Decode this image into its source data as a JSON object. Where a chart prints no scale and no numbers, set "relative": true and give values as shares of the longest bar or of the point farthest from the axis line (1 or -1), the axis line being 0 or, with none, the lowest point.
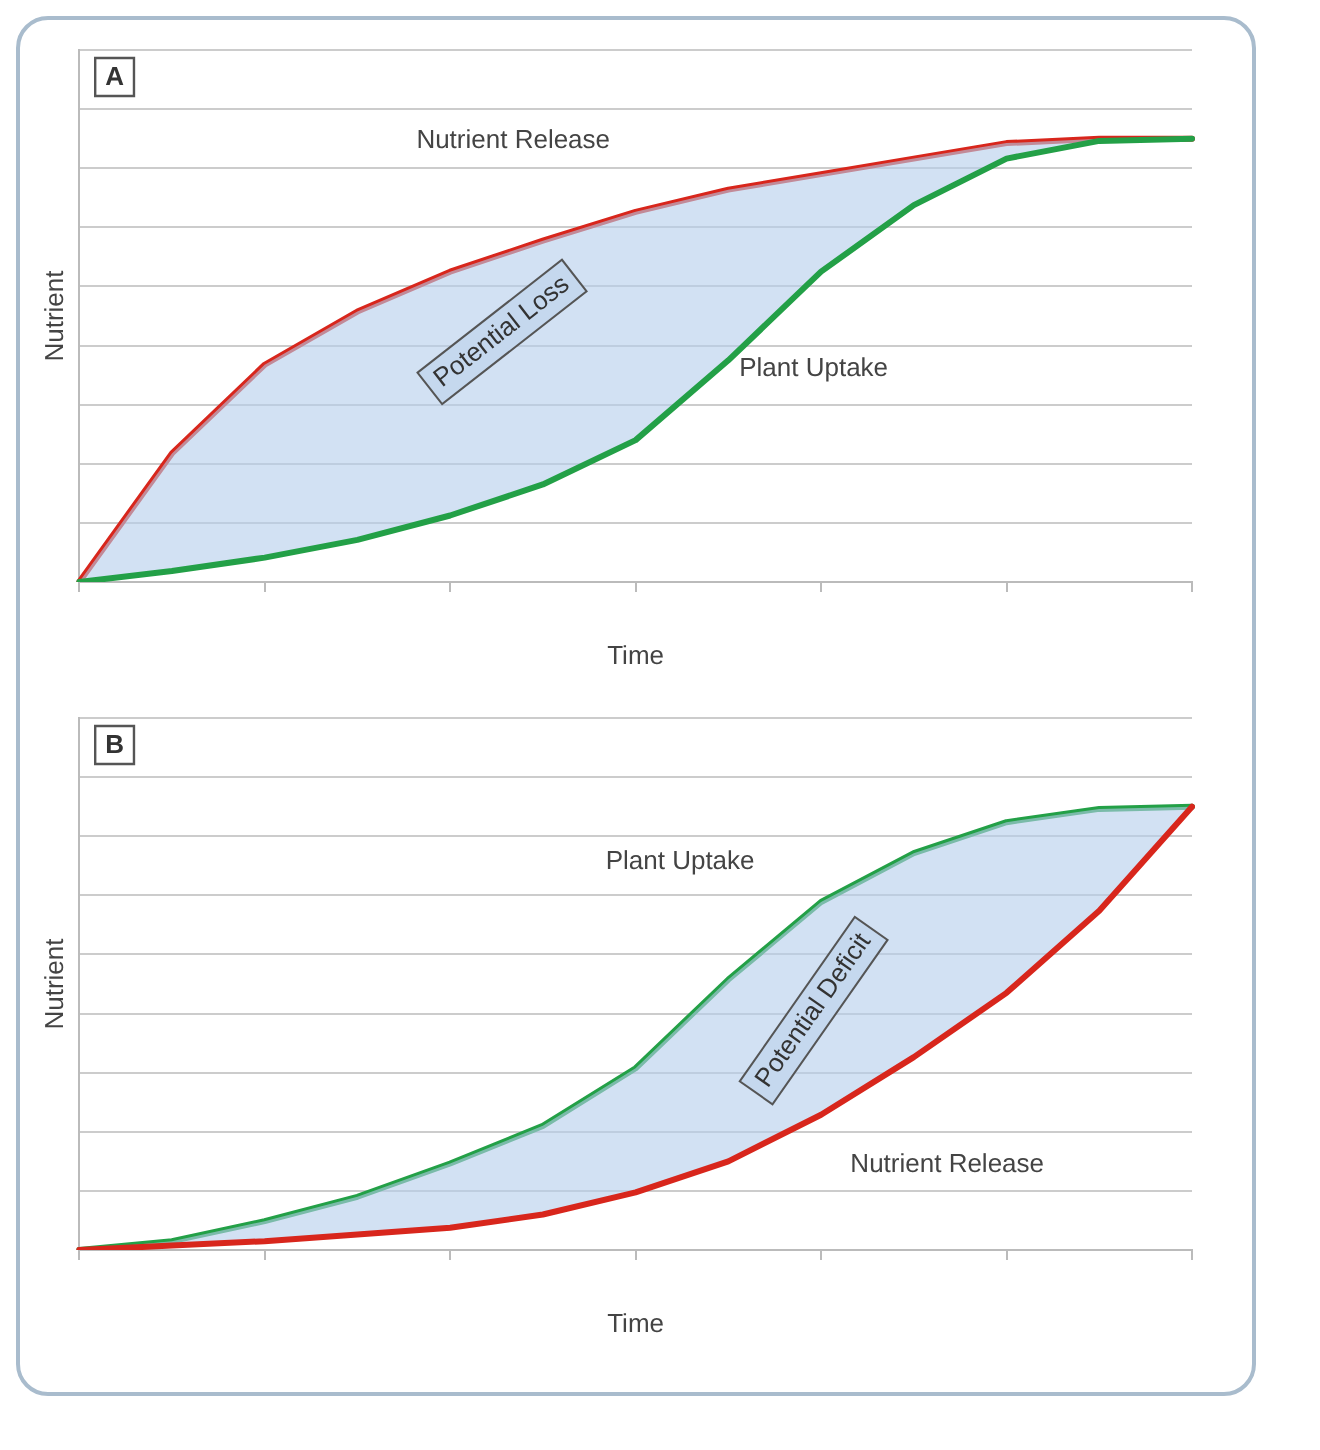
{
  "chart_data": [
    {
      "type": "line",
      "title": "A",
      "xlabel": "Time",
      "ylabel": "Nutrient",
      "relative": true,
      "grid": "y",
      "marker": "none",
      "line_style": "solid",
      "legend": false,
      "categories": [
        null,
        null,
        null,
        null,
        null,
        null,
        null,
        null,
        null,
        null,
        null,
        null,
        null
      ],
      "series": [
        {
          "name": "Nutrient Release",
          "color": "#d8261c",
          "values": [
            0,
            0.29,
            0.49,
            0.61,
            0.7,
            0.77,
            0.835,
            0.885,
            0.92,
            0.955,
            0.99,
            1,
            1
          ]
        },
        {
          "name": "Plant Uptake",
          "color": "#23a047",
          "values": [
            0,
            0.025,
            0.055,
            0.095,
            0.15,
            0.22,
            0.32,
            0.5,
            0.7,
            0.85,
            0.955,
            0.995,
            1
          ]
        }
      ],
      "annotations": [
        "Potential Loss"
      ]
    },
    {
      "type": "line",
      "title": "B",
      "xlabel": "Time",
      "ylabel": "Nutrient",
      "relative": true,
      "grid": "y",
      "marker": "none",
      "line_style": "solid",
      "legend": false,
      "categories": [
        null,
        null,
        null,
        null,
        null,
        null,
        null,
        null,
        null,
        null,
        null,
        null,
        null
      ],
      "series": [
        {
          "name": "Plant Uptake",
          "color": "#23a047",
          "values": [
            0,
            0.02,
            0.065,
            0.12,
            0.195,
            0.28,
            0.41,
            0.61,
            0.785,
            0.895,
            0.965,
            0.995,
            1
          ]
        },
        {
          "name": "Nutrient Release",
          "color": "#d8261c",
          "values": [
            0,
            0.01,
            0.02,
            0.035,
            0.05,
            0.08,
            0.13,
            0.2,
            0.305,
            0.435,
            0.58,
            0.765,
            1
          ]
        }
      ],
      "annotations": [
        "Potential Deficit"
      ]
    }
  ]
}
